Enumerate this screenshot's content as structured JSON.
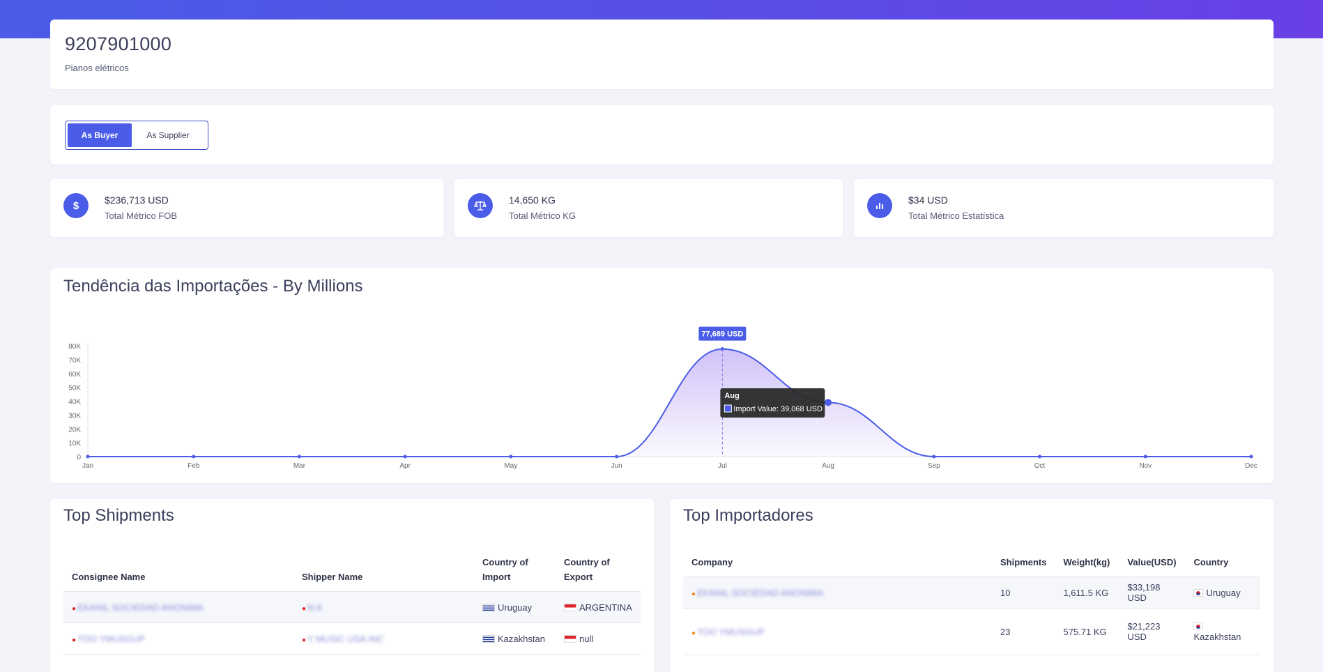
{
  "header": {
    "code": "9207901000",
    "description": "Pianos elétricos"
  },
  "toggle": {
    "buyer_label": "As Buyer",
    "supplier_label": "As Supplier"
  },
  "kpis": [
    {
      "icon": "dollar-icon",
      "value": "$236,713 USD",
      "label": "Total Métrico FOB"
    },
    {
      "icon": "scale-icon",
      "value": "14,650 KG",
      "label": "Total Métrico KG"
    },
    {
      "icon": "bar-chart-icon",
      "value": "$34 USD",
      "label": "Total Métrico Estatística"
    }
  ],
  "chart": {
    "title": "Tendência das Importações - By Millions",
    "peak_label": "77,689 USD",
    "tooltip_title": "Aug",
    "tooltip_text": "Import Value: 39,068 USD"
  },
  "chart_data": {
    "type": "area",
    "title": "Tendência das Importações - By Millions",
    "categories": [
      "Jan",
      "Feb",
      "Mar",
      "Apr",
      "May",
      "Jun",
      "Jul",
      "Aug",
      "Sep",
      "Oct",
      "Nov",
      "Dec"
    ],
    "series": [
      {
        "name": "Import Value",
        "values": [
          0,
          0,
          0,
          0,
          0,
          0,
          77689,
          39068,
          0,
          0,
          0,
          0
        ]
      }
    ],
    "yticks": [
      "0",
      "10K",
      "20K",
      "30K",
      "40K",
      "50K",
      "60K",
      "70K",
      "80K"
    ],
    "ylim": [
      0,
      80000
    ],
    "colors": {
      "line": "#4a5ce8",
      "fill_top": "#c9b7f7",
      "tooltip_bg": "#2a2a2a"
    }
  },
  "shipments": {
    "title": "Top Shipments",
    "headers": [
      "Consignee Name",
      "Shipper Name",
      "Country of Import",
      "Country of Export"
    ],
    "rows": [
      {
        "consignee": "EKANIL SOCIEDAD ANONIMA",
        "shipper": "N A",
        "import": "Uruguay",
        "export": "ARGENTINA"
      },
      {
        "consignee": "TOO YMUSGUP",
        "shipper": "Y MUSIC USA INC",
        "import": "Kazakhstan",
        "export": "null"
      }
    ]
  },
  "importers": {
    "title": "Top Importadores",
    "headers": [
      "Company",
      "Shipments",
      "Weight(kg)",
      "Value(USD)",
      "Country"
    ],
    "rows": [
      {
        "company": "EKANIL SOCIEDAD ANONIMA",
        "shipments": "10",
        "weight": "1,611.5 KG",
        "value": "$33,198 USD",
        "country": "Uruguay"
      },
      {
        "company": "TOO YMUSGUP",
        "shipments": "23",
        "weight": "575.71 KG",
        "value": "$21,223 USD",
        "country": "Kazakhstan"
      }
    ]
  }
}
